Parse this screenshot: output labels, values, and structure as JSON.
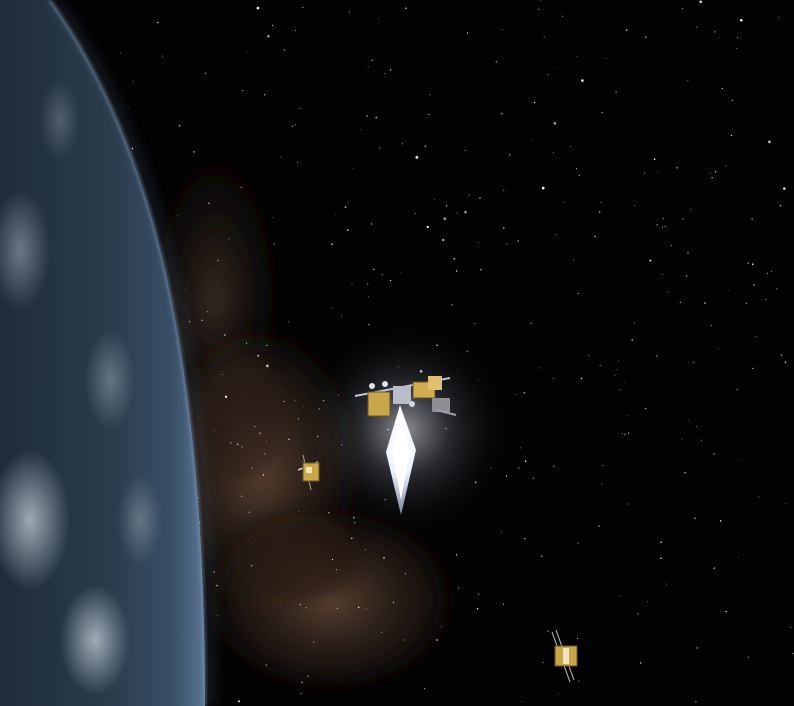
{
  "scene": {
    "kind": "space-simulator-view",
    "colors": {
      "space": "#020203",
      "earth_ocean": "#2c3d4e",
      "earth_limb": "#7e96b3",
      "milky_way": "#5a4233",
      "satellite_gold": "#c9a64a",
      "thruster_glow": "#ffffff"
    },
    "objects": [
      {
        "name": "earth",
        "icon": "planet-earth"
      },
      {
        "name": "milky-way-band",
        "icon": "galaxy-band"
      },
      {
        "name": "space-station",
        "icon": "satellite-station"
      },
      {
        "name": "small-satellite",
        "icon": "satellite-small"
      },
      {
        "name": "distant-satellite",
        "icon": "satellite-small"
      }
    ]
  }
}
